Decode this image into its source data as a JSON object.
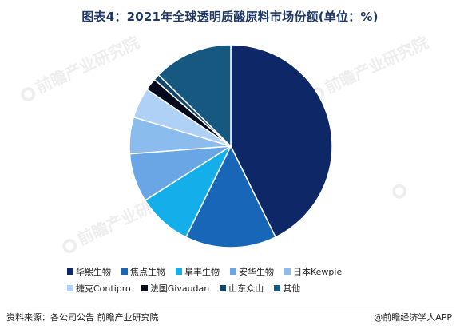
{
  "title": "图表4：2021年全球透明质酸原料市场份额(单位：%)",
  "chart_data": {
    "type": "pie",
    "title": "图表4：2021年全球透明质酸原料市场份额(单位：%)",
    "start_angle_deg": 0,
    "direction": "clockwise",
    "legend_position": "bottom",
    "slices": [
      {
        "label": "华熙生物",
        "value": 44,
        "color": "#0e2766"
      },
      {
        "label": "焦点生物",
        "value": 15,
        "color": "#1766b8"
      },
      {
        "label": "阜丰生物",
        "value": 9,
        "color": "#14aeea"
      },
      {
        "label": "安华生物",
        "value": 8,
        "color": "#6aa6e6"
      },
      {
        "label": "日本Kewpie",
        "value": 6,
        "color": "#8bbcee"
      },
      {
        "label": "捷克Contipro",
        "value": 5,
        "color": "#afd1f5"
      },
      {
        "label": "法国Givaudan",
        "value": 2,
        "color": "#050b1c"
      },
      {
        "label": "山东众山",
        "value": 1,
        "color": "#114466"
      },
      {
        "label": "其他",
        "value": 13,
        "color": "#16587f"
      }
    ]
  },
  "legend_rows": [
    [
      {
        "label": "华熙生物",
        "color": "#0e2766"
      },
      {
        "label": "焦点生物",
        "color": "#1766b8"
      },
      {
        "label": "阜丰生物",
        "color": "#14aeea"
      },
      {
        "label": "安华生物",
        "color": "#6aa6e6"
      },
      {
        "label": "日本Kewpie",
        "color": "#8bbcee"
      }
    ],
    [
      {
        "label": "捷克Contipro",
        "color": "#afd1f5"
      },
      {
        "label": "法国Givaudan",
        "color": "#050b1c"
      },
      {
        "label": "山东众山",
        "color": "#114466"
      },
      {
        "label": "其他",
        "color": "#16587f"
      }
    ]
  ],
  "footer": {
    "source": "资料来源：各公司公告 前瞻产业研究院",
    "brand": "@前瞻经济学人APP"
  },
  "watermark": {
    "text": "前瞻产业研究院"
  }
}
